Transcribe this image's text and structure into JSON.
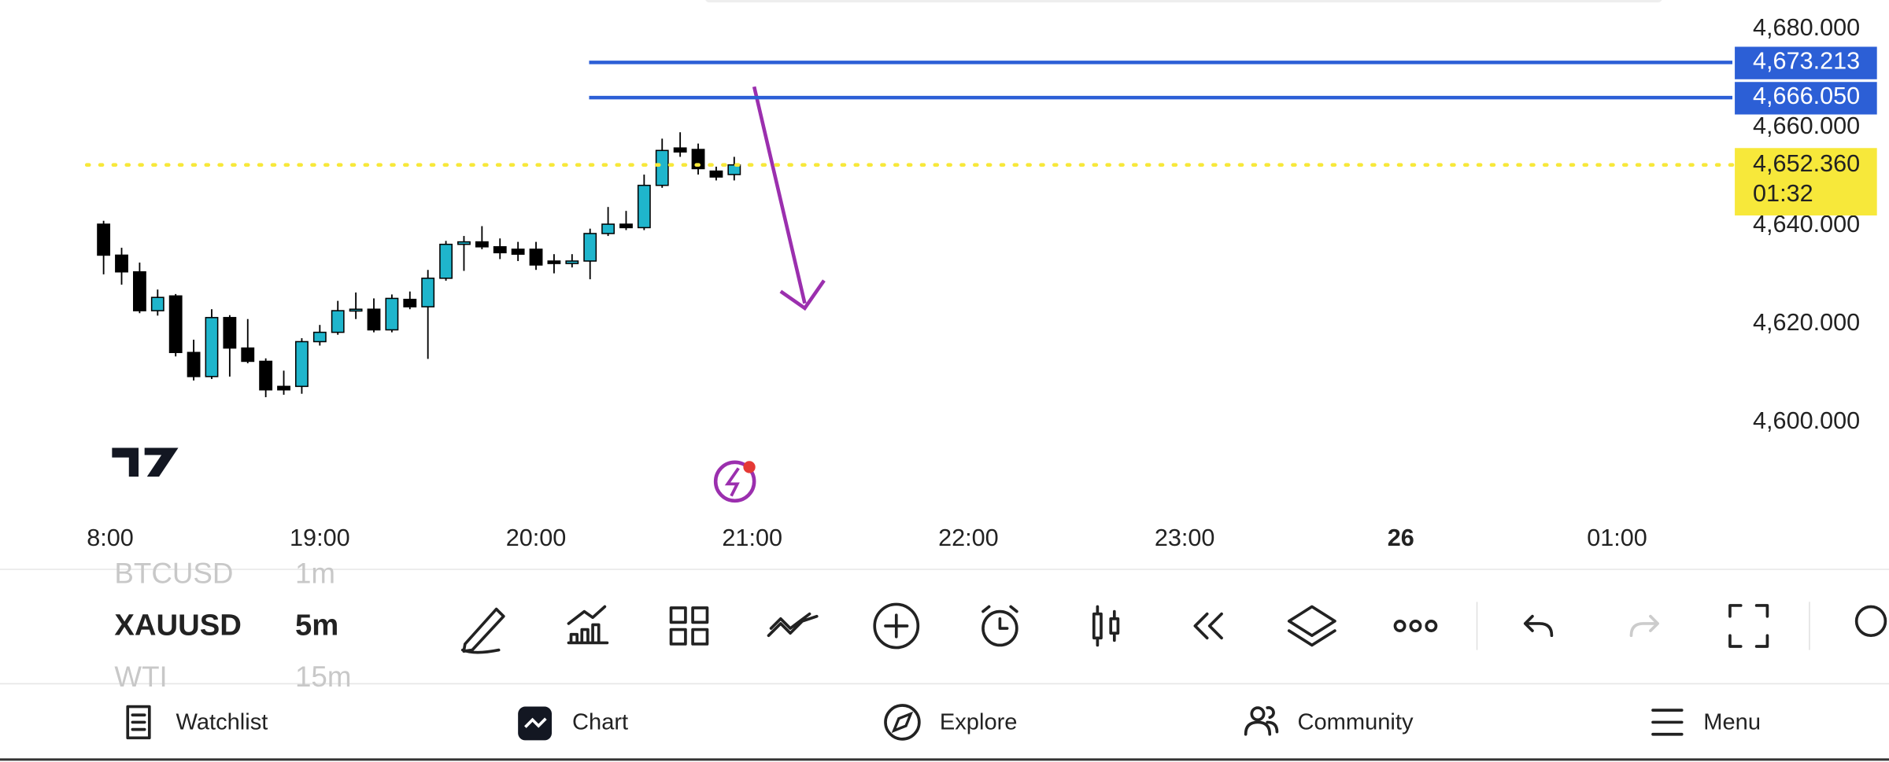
{
  "chart_data": {
    "type": "candlestick",
    "x": [
      0,
      1,
      2,
      3,
      4,
      5,
      6,
      7,
      8,
      9,
      10,
      11,
      12,
      13,
      14,
      15,
      16,
      17,
      18,
      19,
      20,
      21,
      22,
      23,
      24,
      25,
      26,
      27,
      28,
      29,
      30,
      31,
      32,
      33,
      34,
      35
    ],
    "open": [
      4640.3,
      4634,
      4630.6,
      4622.7,
      4625.7,
      4614.2,
      4609.3,
      4621.3,
      4615.1,
      4612.4,
      4607.3,
      4607.3,
      4616.4,
      4618.3,
      4622.7,
      4623,
      4618.8,
      4625,
      4623.5,
      4629.3,
      4636.2,
      4636.7,
      4635.7,
      4635.2,
      4635.2,
      4632.8,
      4632.3,
      4632.8,
      4638.4,
      4640.3,
      4639.6,
      4648.2,
      4655.8,
      4655.5,
      4651.1,
      4650.4
    ],
    "high": [
      4641,
      4635.5,
      4632.5,
      4627,
      4626.1,
      4616.8,
      4623,
      4621.8,
      4621,
      4613,
      4610.5,
      4617.1,
      4619.8,
      4624.7,
      4626.4,
      4625.2,
      4626,
      4626.6,
      4631,
      4636.9,
      4637.9,
      4639.9,
      4637.4,
      4636.7,
      4636.7,
      4634.2,
      4634.2,
      4639.4,
      4643.8,
      4643,
      4650.4,
      4657.7,
      4659,
      4656.7,
      4652,
      4654
    ],
    "low": [
      4630.1,
      4628,
      4622.2,
      4621.7,
      4613.4,
      4608.5,
      4608.8,
      4609.3,
      4612,
      4605.1,
      4605.6,
      4605.8,
      4615.6,
      4617.8,
      4621,
      4618.3,
      4618.3,
      4623,
      4612.9,
      4628.8,
      4630.8,
      4635.2,
      4633.2,
      4632.8,
      4631,
      4630.3,
      4631.5,
      4629.1,
      4637.9,
      4639.1,
      4639.1,
      4647.7,
      4654,
      4650.4,
      4649.2,
      4649.2
    ],
    "close": [
      4634,
      4630.6,
      4622.7,
      4625.4,
      4614.2,
      4609.3,
      4621.3,
      4615.1,
      4612.4,
      4606.6,
      4606.6,
      4616.4,
      4618.3,
      4622.7,
      4623,
      4618.8,
      4625.2,
      4623.5,
      4629.3,
      4636.2,
      4636.7,
      4635.7,
      4634.5,
      4634.2,
      4632,
      4632.3,
      4632.8,
      4638.4,
      4640.3,
      4639.6,
      4648.2,
      4655.3,
      4655,
      4651.6,
      4649.9,
      4652.36
    ],
    "up_color": "#1fb5cc",
    "down_color": "#000000",
    "xlim": [
      -5.75,
      90.4
    ],
    "xticks": [
      {
        "value": 0,
        "label": "8:00"
      },
      {
        "value": 12,
        "label": "19:00"
      },
      {
        "value": 24,
        "label": "20:00"
      },
      {
        "value": 36,
        "label": "21:00"
      },
      {
        "value": 48,
        "label": "22:00"
      },
      {
        "value": 60,
        "label": "23:00"
      },
      {
        "value": 72,
        "label": "26"
      },
      {
        "value": 84,
        "label": "01:00"
      }
    ],
    "ylim": [
      4580.6,
      4685.9
    ],
    "yticks": [
      {
        "value": 4600,
        "label": "4,600.000"
      },
      {
        "value": 4620,
        "label": "4,620.000"
      },
      {
        "value": 4640,
        "label": "4,640.000"
      },
      {
        "value": 4660,
        "label": "4,660.000"
      },
      {
        "value": 4680,
        "label": "4,680.000"
      }
    ],
    "price_lines": [
      {
        "value": 4673.213,
        "label": "4,673.213",
        "color": "#2c5fd6"
      },
      {
        "value": 4666.05,
        "label": "4,666.050",
        "color": "#2c5fd6"
      }
    ],
    "last_price": {
      "value": 4652.36,
      "label": "4,652.360",
      "countdown": "01:32",
      "color": "#f7e83a"
    }
  },
  "symbols": [
    {
      "symbol": "BTCUSD",
      "interval": "1m"
    },
    {
      "symbol": "XAUUSD",
      "interval": "5m"
    },
    {
      "symbol": "WTI",
      "interval": "15m"
    }
  ],
  "nav": [
    "Watchlist",
    "Chart",
    "Explore",
    "Community",
    "Menu"
  ]
}
